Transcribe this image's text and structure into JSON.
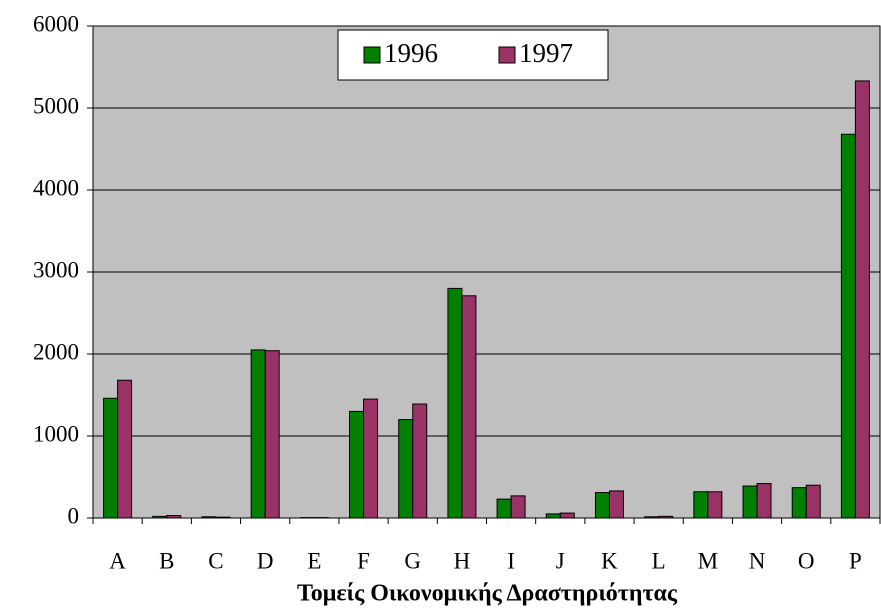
{
  "chart_data": {
    "type": "bar",
    "x_label": "Τομείς Οικονομικής Δραστηριότητας",
    "categories": [
      "A",
      "B",
      "C",
      "D",
      "E",
      "F",
      "G",
      "H",
      "I",
      "J",
      "K",
      "L",
      "M",
      "N",
      "O",
      "P"
    ],
    "series": [
      {
        "name": "1996",
        "color": "#008000",
        "values": [
          1460,
          20,
          15,
          2050,
          5,
          1300,
          1200,
          2800,
          230,
          50,
          310,
          15,
          320,
          390,
          370,
          4680
        ]
      },
      {
        "name": "1997",
        "color": "#993366",
        "values": [
          1680,
          30,
          10,
          2040,
          5,
          1450,
          1390,
          2710,
          270,
          60,
          330,
          20,
          320,
          420,
          400,
          5330
        ]
      }
    ],
    "ylim": [
      0,
      6000
    ],
    "yticks": [
      0,
      1000,
      2000,
      3000,
      4000,
      5000,
      6000
    ],
    "grid": true,
    "legend": "top"
  }
}
